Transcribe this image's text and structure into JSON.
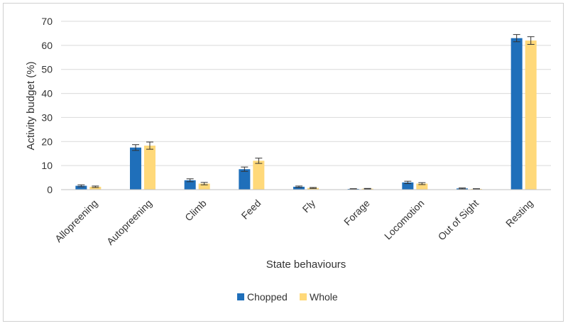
{
  "chart_data": {
    "type": "bar",
    "title": "",
    "xlabel": "State behaviours",
    "ylabel": "Activity budget (%)",
    "ylim": [
      0,
      70
    ],
    "yticks": [
      0,
      10,
      20,
      30,
      40,
      50,
      60,
      70
    ],
    "grid": true,
    "legend_position": "bottom",
    "categories": [
      "Allopreening",
      "Autopreening",
      "Climb",
      "Feed",
      "Fly",
      "Forage",
      "Locomotion",
      "Out of Sight",
      "Resting"
    ],
    "series": [
      {
        "name": "Chopped",
        "color": "#1f6fba",
        "values": [
          1.6,
          17.5,
          3.9,
          8.5,
          1.2,
          0.3,
          3.0,
          0.5,
          63.0
        ],
        "errors": [
          0.4,
          1.2,
          0.6,
          0.9,
          0.3,
          0.1,
          0.5,
          0.2,
          1.5
        ]
      },
      {
        "name": "Whole",
        "color": "#ffd97a",
        "values": [
          1.2,
          18.3,
          2.5,
          12.0,
          0.7,
          0.4,
          2.5,
          0.3,
          62.0
        ],
        "errors": [
          0.3,
          1.5,
          0.5,
          1.1,
          0.2,
          0.1,
          0.4,
          0.1,
          1.6
        ]
      }
    ]
  }
}
